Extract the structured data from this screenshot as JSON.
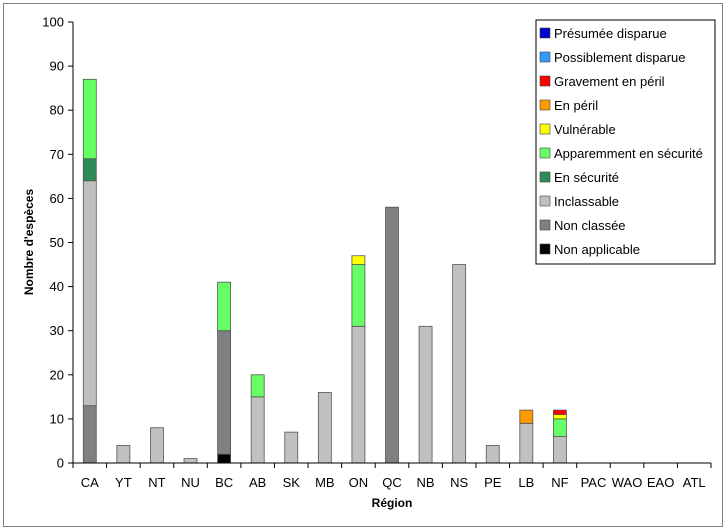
{
  "chart_data": {
    "type": "bar",
    "stacked": true,
    "title": "",
    "xlabel": "Région",
    "ylabel": "Nombre d'espèces",
    "ylim": [
      0,
      100
    ],
    "yticks": [
      0,
      10,
      20,
      30,
      40,
      50,
      60,
      70,
      80,
      90,
      100
    ],
    "legend_position": "top-right",
    "grid": false,
    "categories": [
      "CA",
      "YT",
      "NT",
      "NU",
      "BC",
      "AB",
      "SK",
      "MB",
      "ON",
      "QC",
      "NB",
      "NS",
      "PE",
      "LB",
      "NF",
      "PAC",
      "WAO",
      "EAO",
      "ATL"
    ],
    "series": [
      {
        "name": "Non applicable",
        "color": "#000000",
        "values": [
          0,
          0,
          0,
          0,
          2,
          0,
          0,
          0,
          0,
          0,
          0,
          0,
          0,
          0,
          0,
          0,
          0,
          0,
          0
        ]
      },
      {
        "name": "Non classée",
        "color": "#808080",
        "values": [
          13,
          0,
          0,
          0,
          28,
          0,
          0,
          0,
          0,
          58,
          0,
          0,
          0,
          0,
          0,
          0,
          0,
          0,
          0
        ]
      },
      {
        "name": "Inclassable",
        "color": "#c0c0c0",
        "values": [
          51,
          4,
          8,
          1,
          0,
          15,
          7,
          16,
          31,
          0,
          31,
          45,
          4,
          9,
          6,
          0,
          0,
          0,
          0
        ]
      },
      {
        "name": "En sécurité",
        "color": "#2e8b57",
        "values": [
          5,
          0,
          0,
          0,
          0,
          0,
          0,
          0,
          0,
          0,
          0,
          0,
          0,
          0,
          0,
          0,
          0,
          0,
          0
        ]
      },
      {
        "name": "Apparemment en sécurité",
        "color": "#66ff66",
        "values": [
          18,
          0,
          0,
          0,
          11,
          5,
          0,
          0,
          14,
          0,
          0,
          0,
          0,
          0,
          4,
          0,
          0,
          0,
          0
        ]
      },
      {
        "name": "Vulnérable",
        "color": "#ffff00",
        "values": [
          0,
          0,
          0,
          0,
          0,
          0,
          0,
          0,
          2,
          0,
          0,
          0,
          0,
          0,
          1,
          0,
          0,
          0,
          0
        ]
      },
      {
        "name": "En péril",
        "color": "#ff9900",
        "values": [
          0,
          0,
          0,
          0,
          0,
          0,
          0,
          0,
          0,
          0,
          0,
          0,
          0,
          3,
          0,
          0,
          0,
          0,
          0
        ]
      },
      {
        "name": "Gravement en péril",
        "color": "#ff0000",
        "values": [
          0,
          0,
          0,
          0,
          0,
          0,
          0,
          0,
          0,
          0,
          0,
          0,
          0,
          0,
          1,
          0,
          0,
          0,
          0
        ]
      },
      {
        "name": "Possiblement disparue",
        "color": "#3399ff",
        "values": [
          0,
          0,
          0,
          0,
          0,
          0,
          0,
          0,
          0,
          0,
          0,
          0,
          0,
          0,
          0,
          0,
          0,
          0,
          0
        ]
      },
      {
        "name": "Présumée disparue",
        "color": "#0000cc",
        "values": [
          0,
          0,
          0,
          0,
          0,
          0,
          0,
          0,
          0,
          0,
          0,
          0,
          0,
          0,
          0,
          0,
          0,
          0,
          0
        ]
      }
    ],
    "legend_order": [
      "Présumée disparue",
      "Possiblement disparue",
      "Gravement en péril",
      "En péril",
      "Vulnérable",
      "Apparemment en sécurité",
      "En sécurité",
      "Inclassable",
      "Non classée",
      "Non applicable"
    ]
  }
}
